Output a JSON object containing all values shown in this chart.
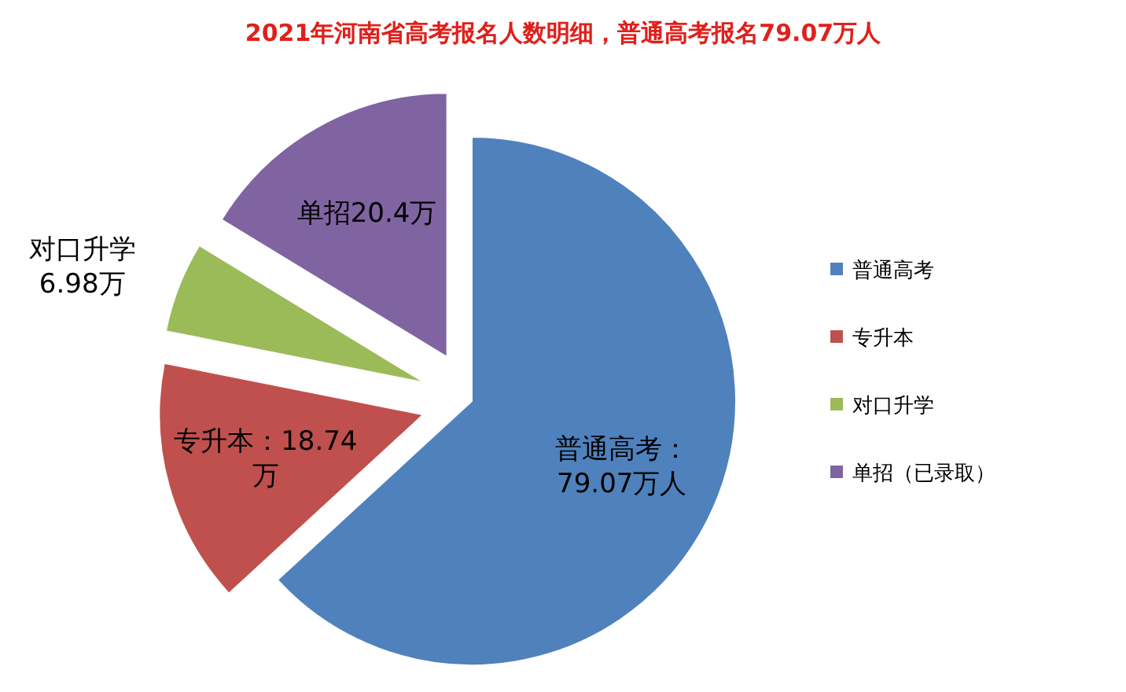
{
  "chart_data": {
    "type": "pie",
    "title": "2021年河南省高考报名人数明细，普通高考报名79.07万人",
    "categories": [
      "普通高考",
      "专升本",
      "对口升学",
      "单招（已录取）"
    ],
    "values": [
      79.07,
      18.74,
      6.98,
      20.4
    ],
    "colors": [
      "#4f81bd",
      "#c0504d",
      "#9bbb59",
      "#8064a2"
    ],
    "value_labels": [
      "普通高考：79.07万人",
      "专升本：18.74万",
      "对口升学6.98万",
      "单招20.4万"
    ],
    "legend": "right"
  }
}
